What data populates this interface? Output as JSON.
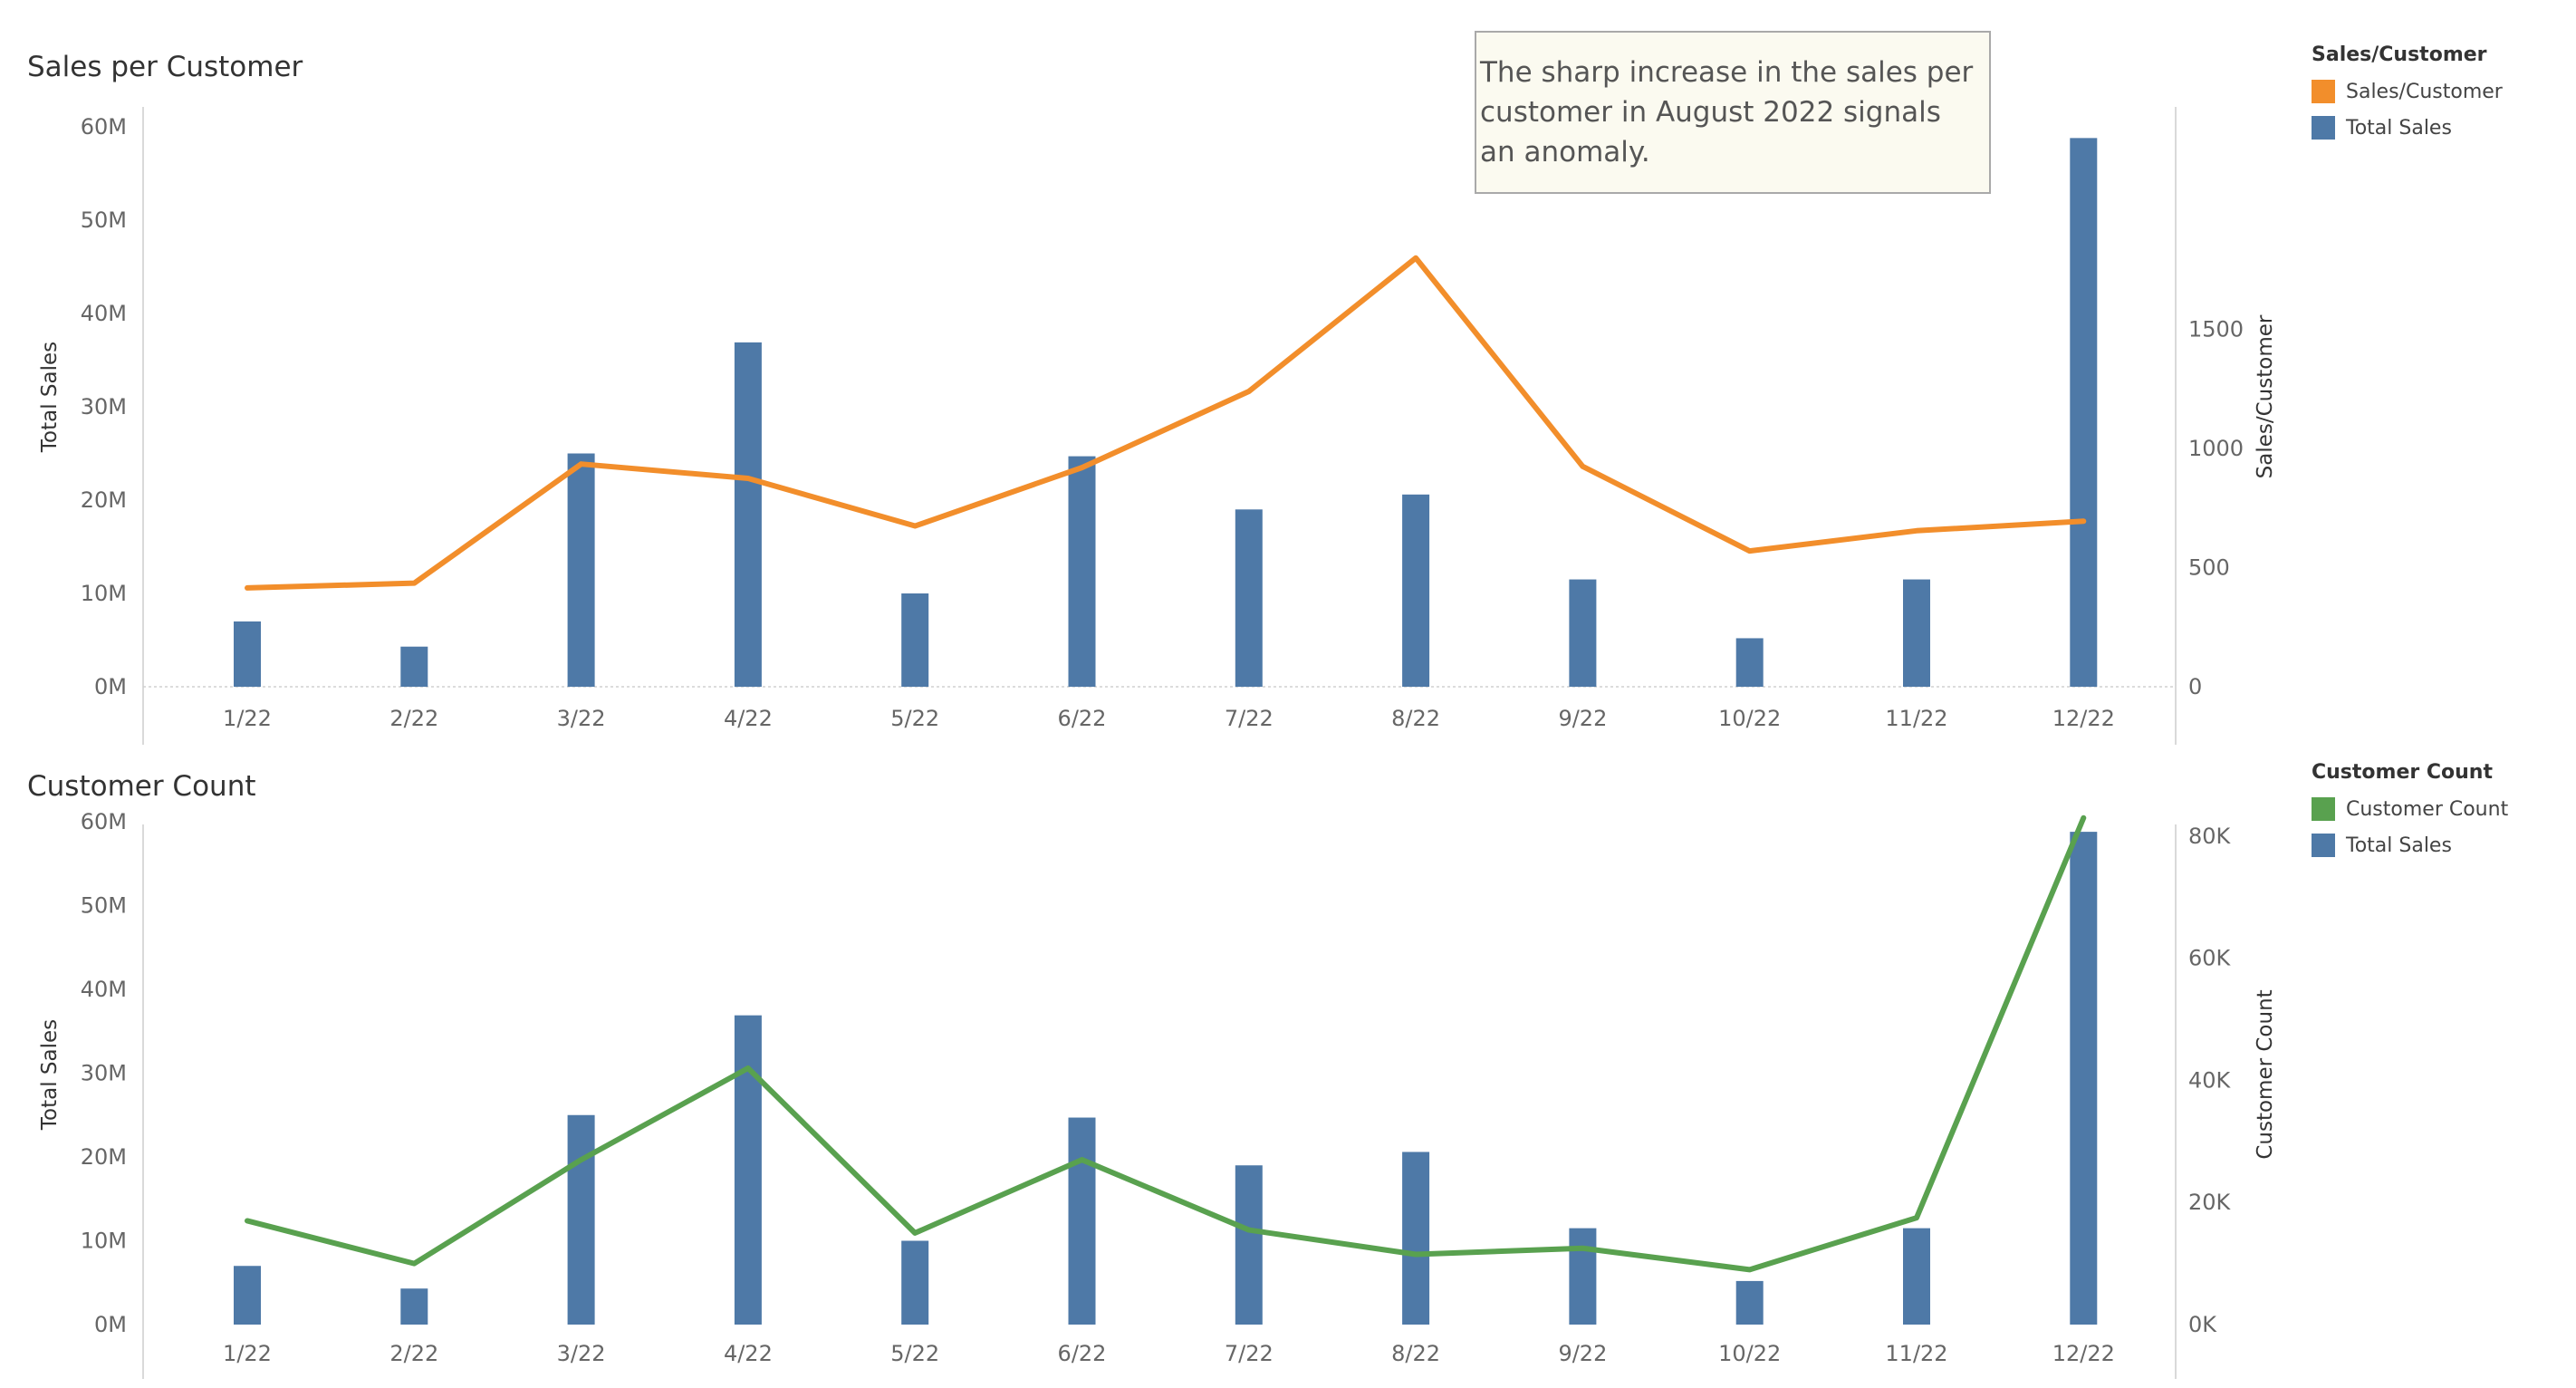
{
  "charts": {
    "top": {
      "title": "Sales per Customer",
      "legend_title": "Sales/Customer",
      "legend": [
        {
          "label": "Sales/Customer",
          "color": "#f28e2b"
        },
        {
          "label": "Total Sales",
          "color": "#4e79a7"
        }
      ]
    },
    "bottom": {
      "title": "Customer Count",
      "legend_title": "Customer Count",
      "legend": [
        {
          "label": "Customer Count",
          "color": "#59a14f"
        },
        {
          "label": "Total Sales",
          "color": "#4e79a7"
        }
      ]
    }
  },
  "annotation": {
    "text": "The sharp increase in the sales per customer in August 2022 signals an anomaly."
  },
  "chart_data": [
    {
      "type": "bar+line",
      "title": "Sales per Customer",
      "categories": [
        "1/22",
        "2/22",
        "3/22",
        "4/22",
        "5/22",
        "6/22",
        "7/22",
        "8/22",
        "9/22",
        "10/22",
        "11/22",
        "12/22"
      ],
      "ylabel_left": "Total Sales",
      "ylabel_right": "Sales/Customer",
      "left_ticks": [
        "0M",
        "10M",
        "20M",
        "30M",
        "40M",
        "50M",
        "60M"
      ],
      "right_ticks": [
        "0",
        "500",
        "1000",
        "1500"
      ],
      "ylim_left": [
        0,
        60000000
      ],
      "ylim_right": [
        0,
        1860
      ],
      "grid": false,
      "legend_position": "right",
      "series": [
        {
          "name": "Total Sales",
          "kind": "bar",
          "color": "#4e79a7",
          "values": [
            7000000,
            4300000,
            25000000,
            36900000,
            10000000,
            24700000,
            19000000,
            20600000,
            11500000,
            5200000,
            11500000,
            58800000
          ]
        },
        {
          "name": "Sales/Customer",
          "kind": "line",
          "axis": "right",
          "color": "#f28e2b",
          "values": [
            415,
            435,
            935,
            875,
            675,
            920,
            1240,
            1800,
            925,
            570,
            655,
            695
          ]
        }
      ]
    },
    {
      "type": "bar+line",
      "title": "Customer Count",
      "categories": [
        "1/22",
        "2/22",
        "3/22",
        "4/22",
        "5/22",
        "6/22",
        "7/22",
        "8/22",
        "9/22",
        "10/22",
        "11/22",
        "12/22"
      ],
      "ylabel_left": "Total Sales",
      "ylabel_right": "Customer Count",
      "left_ticks": [
        "0M",
        "10M",
        "20M",
        "30M",
        "40M",
        "50M",
        "60M"
      ],
      "right_ticks": [
        "0K",
        "20K",
        "40K",
        "60K",
        "80K"
      ],
      "ylim_left": [
        0,
        60000000
      ],
      "ylim_right": [
        0,
        84000
      ],
      "grid": false,
      "legend_position": "right",
      "series": [
        {
          "name": "Total Sales",
          "kind": "bar",
          "color": "#4e79a7",
          "values": [
            7000000,
            4300000,
            25000000,
            36900000,
            10000000,
            24700000,
            19000000,
            20600000,
            11500000,
            5200000,
            11500000,
            58800000
          ]
        },
        {
          "name": "Customer Count",
          "kind": "line",
          "axis": "right",
          "color": "#59a14f",
          "values": [
            17000,
            10000,
            27000,
            42000,
            15000,
            27000,
            15500,
            11500,
            12500,
            9000,
            17500,
            83000
          ]
        }
      ]
    }
  ]
}
